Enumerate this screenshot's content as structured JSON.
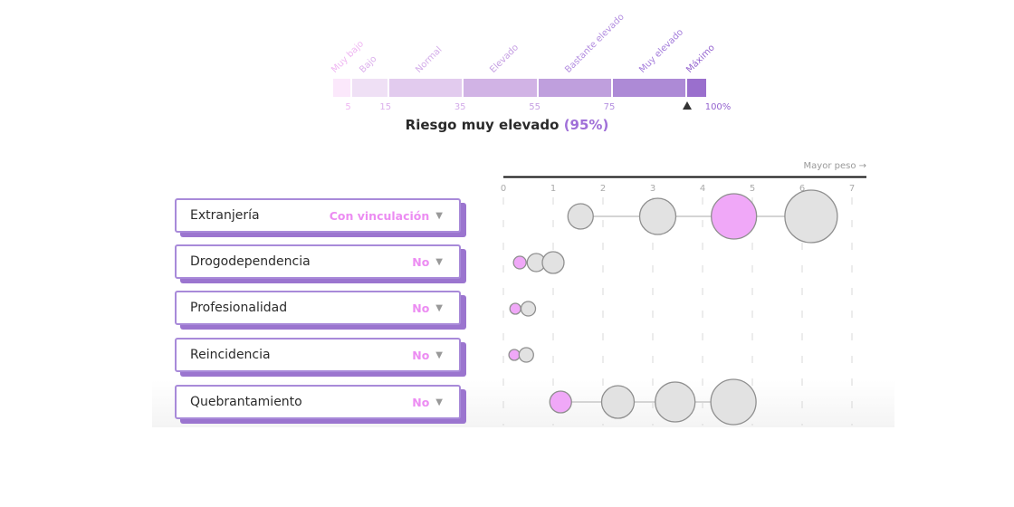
{
  "risk_scale": {
    "segments": [
      {
        "label": "Muy bajo",
        "from": 0,
        "to": 5,
        "color": "#fbe8fb",
        "label_color": "#efb6f2"
      },
      {
        "label": "Bajo",
        "from": 5,
        "to": 15,
        "color": "#efe0f5",
        "label_color": "#dcb0ec"
      },
      {
        "label": "Normal",
        "from": 15,
        "to": 35,
        "color": "#e2cbee",
        "label_color": "#d3ace9"
      },
      {
        "label": "Elevado",
        "from": 35,
        "to": 55,
        "color": "#d1b3e5",
        "label_color": "#c6a0e3"
      },
      {
        "label": "Bastante elevado",
        "from": 55,
        "to": 75,
        "color": "#bf9fdd",
        "label_color": "#b48fe0"
      },
      {
        "label": "Muy elevado",
        "from": 75,
        "to": 95,
        "color": "#ad8ad6",
        "label_color": "#a47ddb"
      },
      {
        "label": "Máximo",
        "from": 95,
        "to": 100,
        "color": "#9a6fcd",
        "label_color": "#9463cf"
      }
    ],
    "ticks": [
      {
        "label": "5",
        "value": 5,
        "color": "#efb6f2"
      },
      {
        "label": "15",
        "value": 15,
        "color": "#dcb0ec"
      },
      {
        "label": "35",
        "value": 35,
        "color": "#d3ace9"
      },
      {
        "label": "55",
        "value": 55,
        "color": "#c6a0e3"
      },
      {
        "label": "75",
        "value": 75,
        "color": "#b48fe0"
      },
      {
        "label": "100%",
        "value": 100,
        "color": "#9463cf"
      }
    ],
    "marker_value": 95,
    "title_prefix": "Riesgo muy elevado",
    "title_pct": "(95%)"
  },
  "factors": [
    {
      "label": "Extranjería",
      "value": "Con vinculación"
    },
    {
      "label": "Drogodependencia",
      "value": "No"
    },
    {
      "label": "Profesionalidad",
      "value": "No"
    },
    {
      "label": "Reincidencia",
      "value": "No"
    },
    {
      "label": "Quebrantamiento",
      "value": "No"
    }
  ],
  "caret_glyph": "▼",
  "chart_data": {
    "type": "scatter",
    "title": "",
    "axis_note": "Mayor peso →",
    "xlim": [
      0,
      7
    ],
    "x_ticks": [
      "0",
      "1",
      "2",
      "3",
      "4",
      "5",
      "6",
      "7"
    ],
    "grid": true,
    "selected_color": "#f0a8f8",
    "default_color": "#e2e2e2",
    "rows": [
      {
        "factor": "Extranjería",
        "points": [
          {
            "x": 1.55,
            "size": 14,
            "selected": false
          },
          {
            "x": 3.1,
            "size": 20,
            "selected": false
          },
          {
            "x": 4.63,
            "size": 25,
            "selected": true
          },
          {
            "x": 6.18,
            "size": 29,
            "selected": false
          }
        ]
      },
      {
        "factor": "Drogodependencia",
        "points": [
          {
            "x": 0.33,
            "size": 7,
            "selected": true
          },
          {
            "x": 0.66,
            "size": 10,
            "selected": false
          },
          {
            "x": 1.0,
            "size": 12,
            "selected": false
          }
        ]
      },
      {
        "factor": "Profesionalidad",
        "points": [
          {
            "x": 0.24,
            "size": 6,
            "selected": true
          },
          {
            "x": 0.5,
            "size": 8,
            "selected": false
          }
        ]
      },
      {
        "factor": "Reincidencia",
        "points": [
          {
            "x": 0.22,
            "size": 6,
            "selected": true
          },
          {
            "x": 0.46,
            "size": 8,
            "selected": false
          }
        ]
      },
      {
        "factor": "Quebrantamiento",
        "points": [
          {
            "x": 1.15,
            "size": 12,
            "selected": true
          },
          {
            "x": 2.3,
            "size": 18,
            "selected": false
          },
          {
            "x": 3.45,
            "size": 22,
            "selected": false
          },
          {
            "x": 4.62,
            "size": 25,
            "selected": false
          }
        ]
      }
    ]
  }
}
